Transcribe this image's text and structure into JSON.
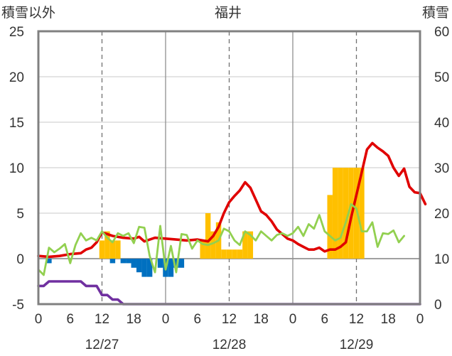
{
  "chart_data": {
    "type": "bar+line",
    "title": "福井",
    "left_axis_label": "積雪以外",
    "right_axis_label": "積雪",
    "left_ylim": [
      -5,
      25
    ],
    "left_yticks": [
      "25",
      "20",
      "15",
      "10",
      "5",
      "0",
      "-5"
    ],
    "right_ylim": [
      0,
      60
    ],
    "right_yticks": [
      "60",
      "50",
      "40",
      "30",
      "20",
      "10",
      "0"
    ],
    "x_hours": [
      0,
      72
    ],
    "x_tick_labels": [
      "0",
      "6",
      "12",
      "18",
      "0",
      "6",
      "12",
      "18",
      "0",
      "6",
      "12",
      "18",
      "0"
    ],
    "day_labels": [
      "12/27",
      "12/28",
      "12/29"
    ],
    "grid": "dashed verticals at 12h, solid verticals at day boundaries",
    "series": [
      {
        "color": "#ffc000",
        "kind": "bar",
        "axis": "left",
        "bars": [
          {
            "h": 12,
            "v": 2.0
          },
          {
            "h": 13,
            "v": 3.0
          },
          {
            "h": 14,
            "v": 2.0
          },
          {
            "h": 15,
            "v": 2.0
          },
          {
            "h": 31,
            "v": 2.0
          },
          {
            "h": 32,
            "v": 5.0
          },
          {
            "h": 33,
            "v": 3.0
          },
          {
            "h": 34,
            "v": 4.0
          },
          {
            "h": 35,
            "v": 1.0
          },
          {
            "h": 36,
            "v": 1.0
          },
          {
            "h": 37,
            "v": 1.0
          },
          {
            "h": 38,
            "v": 1.0
          },
          {
            "h": 39,
            "v": 3.0
          },
          {
            "h": 40,
            "v": 3.0
          },
          {
            "h": 55,
            "v": 7.0
          },
          {
            "h": 56,
            "v": 10.0
          },
          {
            "h": 57,
            "v": 10.0
          },
          {
            "h": 58,
            "v": 10.0
          },
          {
            "h": 59,
            "v": 10.0
          },
          {
            "h": 60,
            "v": 10.0
          },
          {
            "h": 61,
            "v": 10.0
          }
        ]
      },
      {
        "color": "#0070c0",
        "kind": "bar",
        "axis": "left",
        "bars": [
          {
            "h": 2,
            "v": -0.5
          },
          {
            "h": 14,
            "v": -0.5
          },
          {
            "h": 16,
            "v": -0.5
          },
          {
            "h": 17,
            "v": -0.5
          },
          {
            "h": 18,
            "v": -1.0
          },
          {
            "h": 19,
            "v": -1.5
          },
          {
            "h": 20,
            "v": -2.0
          },
          {
            "h": 21,
            "v": -2.0
          },
          {
            "h": 23,
            "v": -1.0
          },
          {
            "h": 24,
            "v": -2.0
          },
          {
            "h": 25,
            "v": -2.0
          },
          {
            "h": 26,
            "v": -1.0
          },
          {
            "h": 27,
            "v": -1.0
          }
        ]
      },
      {
        "color": "#e00000",
        "kind": "line",
        "axis": "left",
        "points": [
          [
            0,
            0.3
          ],
          [
            2,
            0.2
          ],
          [
            4,
            0.3
          ],
          [
            6,
            0.5
          ],
          [
            8,
            0.6
          ],
          [
            9,
            1.0
          ],
          [
            10,
            1.2
          ],
          [
            11,
            1.8
          ],
          [
            12,
            2.9
          ],
          [
            13,
            2.7
          ],
          [
            14,
            2.5
          ],
          [
            16,
            2.3
          ],
          [
            18,
            2.2
          ],
          [
            19,
            2.4
          ],
          [
            20,
            1.9
          ],
          [
            22,
            2.3
          ],
          [
            24,
            2.2
          ],
          [
            26,
            2.1
          ],
          [
            28,
            2.0
          ],
          [
            30,
            2.1
          ],
          [
            32,
            1.9
          ],
          [
            33,
            2.5
          ],
          [
            34,
            3.5
          ],
          [
            35,
            5.0
          ],
          [
            36,
            6.2
          ],
          [
            37,
            6.9
          ],
          [
            38,
            7.5
          ],
          [
            39,
            8.4
          ],
          [
            40,
            7.8
          ],
          [
            41,
            6.5
          ],
          [
            42,
            5.2
          ],
          [
            43,
            4.8
          ],
          [
            44,
            4.1
          ],
          [
            45,
            3.2
          ],
          [
            46,
            2.7
          ],
          [
            47,
            2.2
          ],
          [
            48,
            2.0
          ],
          [
            49,
            1.6
          ],
          [
            50,
            1.3
          ],
          [
            51,
            1.0
          ],
          [
            52,
            1.0
          ],
          [
            53,
            1.2
          ],
          [
            54,
            0.8
          ],
          [
            55,
            1.0
          ],
          [
            56,
            1.0
          ],
          [
            57,
            1.3
          ],
          [
            58,
            1.8
          ],
          [
            59,
            4.5
          ],
          [
            60,
            7.0
          ],
          [
            61,
            9.5
          ],
          [
            62,
            12.0
          ],
          [
            63,
            12.7
          ],
          [
            64,
            12.2
          ],
          [
            65,
            11.8
          ],
          [
            66,
            11.3
          ],
          [
            67,
            10.0
          ],
          [
            68,
            9.1
          ],
          [
            69,
            9.9
          ],
          [
            70,
            7.9
          ],
          [
            71,
            7.3
          ],
          [
            72,
            7.2
          ],
          [
            73,
            6.0
          ]
        ]
      },
      {
        "color": "#92d050",
        "kind": "line",
        "axis": "left",
        "points": [
          [
            0,
            -1.2
          ],
          [
            1,
            -1.8
          ],
          [
            2,
            1.2
          ],
          [
            3,
            0.7
          ],
          [
            4,
            1.1
          ],
          [
            5,
            1.6
          ],
          [
            6,
            -0.5
          ],
          [
            7,
            1.5
          ],
          [
            8,
            2.8
          ],
          [
            9,
            2.0
          ],
          [
            10,
            2.3
          ],
          [
            11,
            2.0
          ],
          [
            12,
            3.0
          ],
          [
            13,
            2.3
          ],
          [
            14,
            1.8
          ],
          [
            15,
            2.8
          ],
          [
            16,
            2.5
          ],
          [
            17,
            2.8
          ],
          [
            18,
            1.7
          ],
          [
            19,
            3.5
          ],
          [
            20,
            3.4
          ],
          [
            21,
            0.3
          ],
          [
            22,
            -1.5
          ],
          [
            23,
            3.6
          ],
          [
            24,
            -1.2
          ],
          [
            25,
            1.4
          ],
          [
            26,
            -1.5
          ],
          [
            27,
            2.7
          ],
          [
            28,
            2.6
          ],
          [
            29,
            1.1
          ],
          [
            30,
            2.0
          ],
          [
            31,
            1.6
          ],
          [
            32,
            1.5
          ],
          [
            33,
            1.7
          ],
          [
            34,
            2.0
          ],
          [
            35,
            3.3
          ],
          [
            36,
            3.0
          ],
          [
            37,
            2.0
          ],
          [
            38,
            1.5
          ],
          [
            39,
            3.0
          ],
          [
            40,
            2.6
          ],
          [
            41,
            2.0
          ],
          [
            42,
            3.0
          ],
          [
            43,
            2.5
          ],
          [
            44,
            2.0
          ],
          [
            45,
            2.6
          ],
          [
            46,
            2.8
          ],
          [
            47,
            2.5
          ],
          [
            48,
            2.8
          ],
          [
            49,
            3.5
          ],
          [
            50,
            2.5
          ],
          [
            51,
            3.8
          ],
          [
            52,
            3.3
          ],
          [
            53,
            4.8
          ],
          [
            54,
            3.0
          ],
          [
            55,
            2.5
          ],
          [
            56,
            2.0
          ],
          [
            57,
            2.3
          ],
          [
            58,
            4.0
          ],
          [
            59,
            6.0
          ],
          [
            60,
            5.5
          ],
          [
            61,
            3.0
          ],
          [
            62,
            3.0
          ],
          [
            63,
            4.0
          ],
          [
            64,
            1.3
          ],
          [
            65,
            2.8
          ],
          [
            66,
            2.7
          ],
          [
            67,
            3.1
          ],
          [
            68,
            1.8
          ],
          [
            69,
            2.5
          ]
        ]
      },
      {
        "color": "#7030a0",
        "kind": "line",
        "axis": "left",
        "points": [
          [
            0,
            -3.0
          ],
          [
            1,
            -3.0
          ],
          [
            2,
            -2.5
          ],
          [
            3,
            -2.5
          ],
          [
            4,
            -2.5
          ],
          [
            5,
            -2.5
          ],
          [
            6,
            -2.5
          ],
          [
            7,
            -2.5
          ],
          [
            8,
            -2.5
          ],
          [
            9,
            -3.0
          ],
          [
            10,
            -3.0
          ],
          [
            11,
            -3.0
          ],
          [
            12,
            -4.0
          ],
          [
            13,
            -4.0
          ],
          [
            14,
            -4.5
          ],
          [
            15,
            -4.5
          ],
          [
            16,
            -5.0
          ],
          [
            72,
            -5.0
          ]
        ]
      }
    ]
  }
}
